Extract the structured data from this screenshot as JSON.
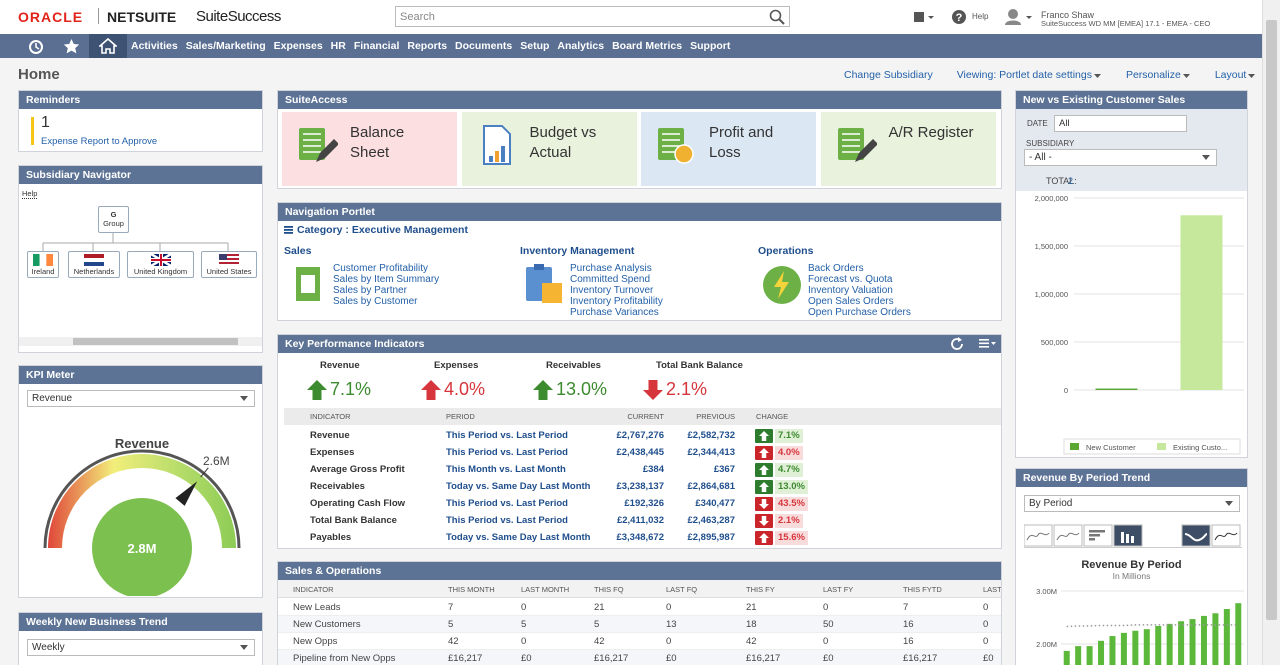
{
  "header": {
    "logo_oracle": "ORACLE",
    "logo_netsuite": "NETSUITE",
    "suite_success": "SuiteSuccess",
    "search_placeholder": "Search",
    "help": "Help",
    "user_name": "Franco Shaw",
    "user_role": "SuiteSuccess WD MM [EMEA] 17.1 - EMEA - CEO"
  },
  "nav": [
    "Activities",
    "Sales/Marketing",
    "Expenses",
    "HR",
    "Financial",
    "Reports",
    "Documents",
    "Setup",
    "Analytics",
    "Board Metrics",
    "Support"
  ],
  "page": {
    "title": "Home",
    "links": [
      "Change Subsidiary",
      "Viewing: Portlet date settings",
      "Personalize",
      "Layout"
    ]
  },
  "reminders": {
    "title": "Reminders",
    "count": "1",
    "label": "Expense Report to Approve"
  },
  "subsidiary_navigator": {
    "title": "Subsidiary Navigator",
    "help": "Help",
    "root_code": "G",
    "root_label": "Group",
    "children": [
      "Ireland",
      "Netherlands",
      "United Kingdom",
      "United States"
    ]
  },
  "kpi_meter": {
    "title": "KPI Meter",
    "select": "Revenue",
    "gauge_title": "Revenue",
    "value_label": "2.8M",
    "target_label": "2.6M"
  },
  "weekly_trend": {
    "title": "Weekly New Business Trend",
    "select": "Weekly"
  },
  "suite_access": {
    "title": "SuiteAccess",
    "tiles": [
      {
        "label": "Balance Sheet",
        "color": "#fbdfe1"
      },
      {
        "label": "Budget vs Actual",
        "color": "#e9f2dd"
      },
      {
        "label": "Profit and Loss",
        "color": "#dbe7f3"
      },
      {
        "label": "A/R Register",
        "color": "#e9f2dd"
      }
    ]
  },
  "navigation_portlet": {
    "title": "Navigation Portlet",
    "category": "Category : Executive Management",
    "groups": [
      {
        "name": "Sales",
        "links": [
          "Customer Profitability",
          "Sales by Item Summary",
          "Sales by Partner",
          "Sales by Customer"
        ]
      },
      {
        "name": "Inventory Management",
        "links": [
          "Purchase Analysis",
          "Committed Spend",
          "Inventory Turnover",
          "Inventory Profitability",
          "Purchase Variances"
        ]
      },
      {
        "name": "Operations",
        "links": [
          "Back Orders",
          "Forecast vs. Quota",
          "Inventory Valuation",
          "Open Sales Orders",
          "Open Purchase Orders"
        ]
      }
    ]
  },
  "kpi": {
    "title": "Key Performance Indicators",
    "highlights": [
      {
        "name": "Revenue",
        "change": "7.1%",
        "direction": "up",
        "good": true
      },
      {
        "name": "Expenses",
        "change": "4.0%",
        "direction": "up",
        "good": false
      },
      {
        "name": "Receivables",
        "change": "13.0%",
        "direction": "up",
        "good": true
      },
      {
        "name": "Total Bank Balance",
        "change": "2.1%",
        "direction": "down",
        "good": false
      }
    ],
    "columns": [
      "INDICATOR",
      "PERIOD",
      "CURRENT",
      "PREVIOUS",
      "CHANGE"
    ],
    "rows": [
      {
        "indicator": "Revenue",
        "period": "This Period vs. Last Period",
        "current": "£2,767,276",
        "previous": "£2,582,732",
        "change": "7.1%",
        "direction": "up",
        "good": true
      },
      {
        "indicator": "Expenses",
        "period": "This Period vs. Last Period",
        "current": "£2,438,445",
        "previous": "£2,344,413",
        "change": "4.0%",
        "direction": "up",
        "good": false
      },
      {
        "indicator": "Average Gross Profit",
        "period": "This Month vs. Last Month",
        "current": "£384",
        "previous": "£367",
        "change": "4.7%",
        "direction": "up",
        "good": true
      },
      {
        "indicator": "Receivables",
        "period": "Today vs. Same Day Last Month",
        "current": "£3,238,137",
        "previous": "£2,864,681",
        "change": "13.0%",
        "direction": "up",
        "good": true
      },
      {
        "indicator": "Operating Cash Flow",
        "period": "This Period vs. Last Period",
        "current": "£192,326",
        "previous": "£340,477",
        "change": "43.5%",
        "direction": "down",
        "good": false
      },
      {
        "indicator": "Total Bank Balance",
        "period": "This Period vs. Last Period",
        "current": "£2,411,032",
        "previous": "£2,463,287",
        "change": "2.1%",
        "direction": "down",
        "good": false
      },
      {
        "indicator": "Payables",
        "period": "Today vs. Same Day Last Month",
        "current": "£3,348,672",
        "previous": "£2,895,987",
        "change": "15.6%",
        "direction": "up",
        "good": false
      }
    ]
  },
  "sales_ops": {
    "title": "Sales & Operations",
    "columns": [
      "INDICATOR",
      "THIS MONTH",
      "LAST MONTH",
      "THIS FQ",
      "LAST FQ",
      "THIS FY",
      "LAST FY",
      "THIS FYTD",
      "LAST"
    ],
    "rows": [
      [
        "New Leads",
        "7",
        "0",
        "21",
        "0",
        "21",
        "0",
        "7",
        "0"
      ],
      [
        "New Customers",
        "5",
        "5",
        "5",
        "13",
        "18",
        "50",
        "16",
        "0"
      ],
      [
        "New Opps",
        "42",
        "0",
        "42",
        "0",
        "42",
        "0",
        "16",
        "0"
      ],
      [
        "Pipeline from New Opps",
        "£16,217",
        "£0",
        "£16,217",
        "£0",
        "£16,217",
        "£0",
        "£16,217",
        "£0"
      ]
    ]
  },
  "customer_sales": {
    "title": "New vs Existing Customer Sales",
    "date_label": "DATE",
    "date_value": "All",
    "subsidiary_label": "SUBSIDIARY",
    "subsidiary_value": "- All -",
    "total_label": "TOTAL:",
    "total_value": "2",
    "chart": {
      "type": "bar",
      "categories": [
        "New Customer",
        "Existing Custo..."
      ],
      "values": [
        15000,
        1820000
      ],
      "colors": [
        "#5aa832",
        "#c6e89c"
      ],
      "ylim": [
        0,
        2000000
      ],
      "yticks": [
        0,
        {
          "value": 500000,
          "label": "500,000"
        },
        {
          "value": 1000000,
          "label": "1,000,000"
        },
        {
          "value": 1500000,
          "label": "1,500,000"
        },
        {
          "value": 2000000,
          "label": "2,000,000"
        }
      ],
      "grid": true
    }
  },
  "revenue_trend": {
    "title": "Revenue By Period Trend",
    "select": "By Period",
    "chart": {
      "type": "bar",
      "title": "Revenue By Period",
      "subtitle": "In Millions",
      "ylim": [
        1.6,
        3.25
      ],
      "yticks": [
        {
          "value": 3,
          "label": "3.00M"
        },
        {
          "value": 2,
          "label": "2.00M"
        }
      ],
      "grid": true,
      "series": [
        {
          "color": "#5cb83a",
          "values": [
            1.87,
            1.96,
            1.96,
            2.06,
            2.15,
            2.21,
            2.25,
            2.28,
            2.34,
            2.38,
            2.43,
            2.47,
            2.53,
            2.58,
            2.66,
            2.77
          ]
        },
        {
          "color": "#999999",
          "line": "dotted",
          "values": [
            2.33,
            2.34,
            2.34,
            2.35,
            2.35,
            2.35,
            2.36,
            2.36,
            2.36,
            2.36,
            2.36,
            2.36,
            2.36,
            2.36,
            2.36,
            2.36
          ]
        }
      ]
    }
  }
}
